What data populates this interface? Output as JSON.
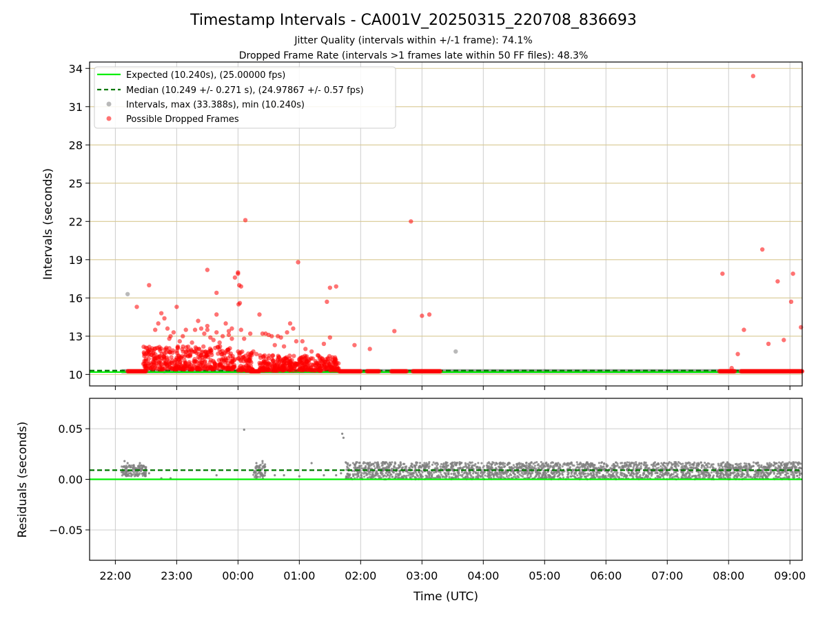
{
  "figure": {
    "title": "Timestamp Intervals - CA001V_20250315_220708_836693",
    "subtitle_1": "Jitter Quality (intervals within +/-1 frame): 74.1%",
    "subtitle_2": "Dropped Frame Rate (intervals >1 frames late within 50 FF files): 48.3%",
    "xlabel": "Time (UTC)"
  },
  "colors": {
    "expected": "#00ee00",
    "median": "#007700",
    "intervals": "#808080",
    "dropped": "#ff0000",
    "hgrid_top": "#d8c890",
    "grid": "#cccccc"
  },
  "chart_data": [
    {
      "type": "scatter",
      "panel": "intervals",
      "ylabel": "Intervals (seconds)",
      "xlim_hours": [
        -2.42,
        9.2
      ],
      "ylim": [
        9.1,
        34.5
      ],
      "yticks": [
        10,
        13,
        16,
        19,
        22,
        25,
        28,
        31,
        34
      ],
      "xticks": [
        {
          "h": -2,
          "label": "22:00"
        },
        {
          "h": -1,
          "label": "23:00"
        },
        {
          "h": 0,
          "label": "00:00"
        },
        {
          "h": 1,
          "label": "01:00"
        },
        {
          "h": 2,
          "label": "02:00"
        },
        {
          "h": 3,
          "label": "03:00"
        },
        {
          "h": 4,
          "label": "04:00"
        },
        {
          "h": 5,
          "label": "05:00"
        },
        {
          "h": 6,
          "label": "06:00"
        },
        {
          "h": 7,
          "label": "07:00"
        },
        {
          "h": 8,
          "label": "08:00"
        },
        {
          "h": 9,
          "label": "09:00"
        }
      ],
      "grid": true,
      "legend_position": "top-left",
      "legend": {
        "expected": "Expected (10.240s), (25.00000 fps)",
        "median": "Median (10.249 +/- 0.271 s), (24.97867 +/- 0.57 fps)",
        "intervals": "Intervals, max (33.388s), min (10.240s)",
        "dropped": "Possible Dropped Frames"
      },
      "expected_value": 10.24,
      "median_value": 10.249,
      "interval_points": [
        [
          -1.8,
          16.3
        ],
        [
          3.55,
          11.8
        ],
        [
          -1.8,
          10.25
        ],
        [
          -1.2,
          10.25
        ],
        [
          5.0,
          10.25
        ]
      ],
      "interval_band": {
        "from_h": -1.9,
        "to_h": 9.2,
        "value": 10.25
      },
      "dropped_points": [
        [
          -1.65,
          15.3
        ],
        [
          -1.45,
          17.0
        ],
        [
          -1.35,
          13.5
        ],
        [
          -1.3,
          14.0
        ],
        [
          -1.25,
          14.8
        ],
        [
          -1.2,
          14.4
        ],
        [
          -1.15,
          13.6
        ],
        [
          -1.1,
          13.0
        ],
        [
          -1.12,
          12.8
        ],
        [
          -1.05,
          13.3
        ],
        [
          -1.0,
          15.3
        ],
        [
          -0.95,
          12.6
        ],
        [
          -0.9,
          13.0
        ],
        [
          -0.85,
          13.5
        ],
        [
          -0.8,
          11.8
        ],
        [
          -0.75,
          12.5
        ],
        [
          -0.7,
          13.5
        ],
        [
          -0.65,
          14.2
        ],
        [
          -0.6,
          13.6
        ],
        [
          -0.55,
          13.2
        ],
        [
          -0.5,
          13.8
        ],
        [
          -0.45,
          12.9
        ],
        [
          -0.4,
          12.7
        ],
        [
          -0.35,
          13.3
        ],
        [
          -0.3,
          12.5
        ],
        [
          -0.25,
          13.0
        ],
        [
          -0.15,
          13.1
        ],
        [
          -0.1,
          12.8
        ],
        [
          -0.5,
          13.5
        ],
        [
          -0.35,
          14.7
        ],
        [
          -0.5,
          18.2
        ],
        [
          -0.35,
          16.4
        ],
        [
          -0.2,
          14.0
        ],
        [
          -0.15,
          13.4
        ],
        [
          -0.1,
          13.6
        ],
        [
          0.05,
          13.5
        ],
        [
          0.1,
          12.8
        ],
        [
          -0.05,
          17.6
        ],
        [
          0.0,
          18.0
        ],
        [
          0.0,
          17.9
        ],
        [
          0.02,
          17.0
        ],
        [
          0.05,
          16.9
        ],
        [
          0.01,
          15.5
        ],
        [
          0.03,
          15.6
        ],
        [
          0.12,
          22.1
        ],
        [
          0.2,
          13.2
        ],
        [
          0.25,
          11.8
        ],
        [
          0.3,
          11.6
        ],
        [
          0.35,
          14.7
        ],
        [
          0.4,
          13.2
        ],
        [
          0.45,
          13.2
        ],
        [
          0.5,
          13.1
        ],
        [
          0.55,
          13.0
        ],
        [
          0.6,
          12.3
        ],
        [
          0.65,
          13.0
        ],
        [
          0.7,
          12.9
        ],
        [
          0.75,
          12.2
        ],
        [
          0.8,
          13.3
        ],
        [
          0.85,
          14.0
        ],
        [
          0.9,
          13.6
        ],
        [
          0.95,
          12.6
        ],
        [
          0.98,
          18.8
        ],
        [
          1.05,
          12.6
        ],
        [
          1.1,
          12.0
        ],
        [
          1.2,
          11.8
        ],
        [
          1.3,
          11.5
        ],
        [
          1.4,
          12.4
        ],
        [
          1.45,
          15.7
        ],
        [
          1.5,
          16.8
        ],
        [
          1.6,
          16.9
        ],
        [
          1.5,
          12.9
        ],
        [
          1.9,
          12.3
        ],
        [
          2.15,
          12.0
        ],
        [
          2.55,
          13.4
        ],
        [
          2.82,
          22.0
        ],
        [
          3.0,
          14.6
        ],
        [
          3.12,
          14.7
        ],
        [
          7.9,
          17.9
        ],
        [
          8.05,
          10.5
        ],
        [
          8.15,
          11.6
        ],
        [
          8.25,
          13.5
        ],
        [
          8.4,
          33.4
        ],
        [
          8.55,
          19.8
        ],
        [
          8.65,
          12.4
        ],
        [
          8.8,
          17.3
        ],
        [
          8.9,
          12.7
        ],
        [
          9.05,
          17.9
        ],
        [
          9.02,
          15.7
        ],
        [
          9.18,
          13.7
        ]
      ],
      "dropped_clusters": [
        {
          "from_h": -1.55,
          "to_h": -0.05,
          "min": 10.4,
          "max": 12.2
        },
        {
          "from_h": 0.0,
          "to_h": 0.25,
          "min": 10.3,
          "max": 11.8
        },
        {
          "from_h": 0.35,
          "to_h": 1.65,
          "min": 10.3,
          "max": 11.5
        }
      ],
      "dropped_band_segments": [
        {
          "from_h": -1.8,
          "to_h": -1.5
        },
        {
          "from_h": 0.2,
          "to_h": 0.35
        },
        {
          "from_h": 1.65,
          "to_h": 2.0
        },
        {
          "from_h": 2.1,
          "to_h": 2.3
        },
        {
          "from_h": 2.5,
          "to_h": 2.75
        },
        {
          "from_h": 2.85,
          "to_h": 3.3
        },
        {
          "from_h": 7.85,
          "to_h": 8.1
        },
        {
          "from_h": 8.2,
          "to_h": 9.2
        }
      ],
      "dropped_band_value": 10.25
    },
    {
      "type": "scatter",
      "panel": "residuals",
      "ylabel": "Residuals (seconds)",
      "xlabel": "Time (UTC)",
      "ylim": [
        -0.08,
        0.08
      ],
      "yticks": [
        {
          "v": 0.05,
          "label": "0.05"
        },
        {
          "v": 0.0,
          "label": "0.00"
        },
        {
          "v": -0.05,
          "label": "−0.05"
        }
      ],
      "grid": true,
      "expected_value": 0.0,
      "median_value": 0.009,
      "points": [
        [
          -1.85,
          0.018
        ],
        [
          -1.8,
          0.016
        ],
        [
          -1.75,
          0.012
        ],
        [
          -1.7,
          0.014
        ],
        [
          -1.6,
          0.016
        ],
        [
          -1.5,
          0.012
        ],
        [
          -1.45,
          0.006
        ],
        [
          -1.25,
          0.001
        ],
        [
          -1.1,
          0.001
        ],
        [
          -0.35,
          0.004
        ],
        [
          0.1,
          0.049
        ],
        [
          0.3,
          0.016
        ],
        [
          0.4,
          0.018
        ],
        [
          0.6,
          0.004
        ],
        [
          0.75,
          0.004
        ],
        [
          1.0,
          0.003
        ],
        [
          1.2,
          0.016
        ],
        [
          1.4,
          0.004
        ],
        [
          1.6,
          0.004
        ],
        [
          1.7,
          0.045
        ],
        [
          1.72,
          0.041
        ],
        [
          1.68,
          0.006
        ]
      ],
      "clusters": [
        {
          "from_h": -1.9,
          "to_h": -1.5,
          "min": 0.003,
          "max": 0.014
        },
        {
          "from_h": 0.25,
          "to_h": 0.45,
          "min": 0.001,
          "max": 0.016
        },
        {
          "from_h": 1.75,
          "to_h": 9.2,
          "min": 0.0,
          "max": 0.017
        }
      ]
    }
  ]
}
